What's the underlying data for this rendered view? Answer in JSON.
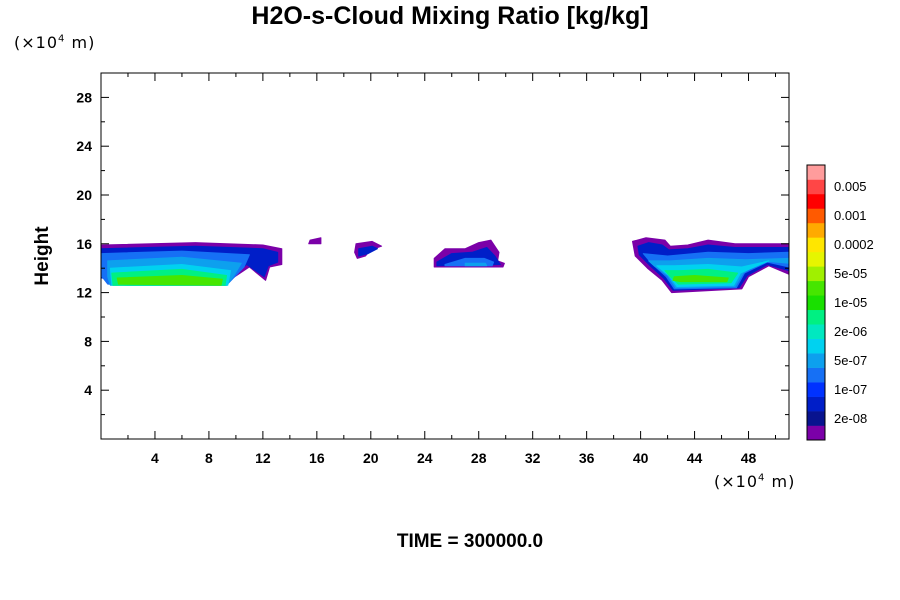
{
  "chart_data": {
    "type": "contour",
    "title": "H2O-s-Cloud Mixing Ratio [kg/kg]",
    "ylabel": "Height",
    "x_unit": {
      "prefix": "(×10",
      "exp": "4",
      "suffix": " m)"
    },
    "y_unit": {
      "prefix": "(×10",
      "exp": "4",
      "suffix": " m)"
    },
    "xlim": [
      0,
      51
    ],
    "ylim": [
      0,
      30
    ],
    "x_ticks": [
      "4",
      "8",
      "12",
      "16",
      "20",
      "24",
      "28",
      "32",
      "36",
      "40",
      "44",
      "48"
    ],
    "y_ticks": [
      "4",
      "8",
      "12",
      "16",
      "20",
      "24",
      "28"
    ],
    "footer": "TIME = 300000.0",
    "colorbar": {
      "colors": [
        "#7b00a8",
        "#08138f",
        "#001ec8",
        "#0032ff",
        "#1670f5",
        "#0da0ee",
        "#00d2f0",
        "#00e8c0",
        "#00f082",
        "#19e000",
        "#46e600",
        "#a0f000",
        "#e6f500",
        "#ffe600",
        "#ffaa00",
        "#ff5a00",
        "#ff0000",
        "#ff4646",
        "#ff9c9c"
      ],
      "labels": [
        {
          "text": "2e-08",
          "index": 1
        },
        {
          "text": "1e-07",
          "index": 3
        },
        {
          "text": "5e-07",
          "index": 5
        },
        {
          "text": "2e-06",
          "index": 7
        },
        {
          "text": "1e-05",
          "index": 9
        },
        {
          "text": "5e-05",
          "index": 11
        },
        {
          "text": "0.0002",
          "index": 13
        },
        {
          "text": "0.001",
          "index": 15
        },
        {
          "text": "0.005",
          "index": 17
        }
      ]
    },
    "regions": [
      {
        "name": "cloud-left",
        "bands": [
          [
            [
              0,
              15.9
            ],
            [
              7,
              16.1
            ],
            [
              12,
              15.9
            ],
            [
              13.4,
              15.6
            ],
            [
              13.4,
              14.3
            ],
            [
              12.5,
              14.1
            ],
            [
              12.2,
              13.0
            ],
            [
              11,
              14.1
            ],
            [
              9.5,
              13.0
            ],
            [
              0,
              13.2
            ]
          ],
          [
            [
              0,
              15.6
            ],
            [
              7,
              15.8
            ],
            [
              12,
              15.6
            ],
            [
              13.1,
              15.3
            ],
            [
              13.1,
              14.5
            ],
            [
              12.4,
              14.2
            ],
            [
              12.1,
              13.3
            ],
            [
              10.8,
              14.3
            ],
            [
              9.3,
              13.0
            ],
            [
              0,
              13.2
            ]
          ],
          [
            [
              0,
              15.2
            ],
            [
              6,
              15.4
            ],
            [
              11,
              15.1
            ],
            [
              10.6,
              14.1
            ],
            [
              9.3,
              12.6
            ],
            [
              7,
              12.6
            ],
            [
              2,
              12.6
            ],
            [
              0.5,
              12.7
            ],
            [
              0,
              13.4
            ]
          ],
          [
            [
              0.5,
              14.6
            ],
            [
              6,
              14.9
            ],
            [
              10.4,
              14.4
            ],
            [
              9.8,
              13.3
            ],
            [
              9.3,
              12.6
            ],
            [
              0.7,
              12.6
            ],
            [
              0.5,
              13.3
            ]
          ],
          [
            [
              0.7,
              14.0
            ],
            [
              6,
              14.3
            ],
            [
              9.6,
              13.8
            ],
            [
              9.4,
              12.6
            ],
            [
              0.8,
              12.6
            ]
          ],
          [
            [
              0.8,
              13.6
            ],
            [
              6,
              13.9
            ],
            [
              9.3,
              13.4
            ],
            [
              9.2,
              12.6
            ],
            [
              0.9,
              12.6
            ]
          ],
          [
            [
              1.2,
              13.2
            ],
            [
              6,
              13.4
            ],
            [
              9.0,
              13.1
            ],
            [
              8.9,
              12.6
            ],
            [
              1.3,
              12.7
            ]
          ]
        ]
      },
      {
        "name": "cloud-speck",
        "bands": [
          [
            [
              15.5,
              16.3
            ],
            [
              16.3,
              16.5
            ],
            [
              16.3,
              16.0
            ],
            [
              15.4,
              16.0
            ]
          ]
        ]
      },
      {
        "name": "cloud-small",
        "bands": [
          [
            [
              18.9,
              16.0
            ],
            [
              20.1,
              16.2
            ],
            [
              20.8,
              15.8
            ],
            [
              20.0,
              15.5
            ],
            [
              19.6,
              15.0
            ],
            [
              19.0,
              14.8
            ],
            [
              18.8,
              15.3
            ]
          ],
          [
            [
              19.1,
              15.6
            ],
            [
              20.1,
              15.8
            ],
            [
              20.5,
              15.6
            ],
            [
              19.8,
              15.2
            ],
            [
              19.1,
              15.0
            ]
          ]
        ]
      },
      {
        "name": "cloud-center",
        "bands": [
          [
            [
              24.7,
              14.8
            ],
            [
              25.5,
              15.6
            ],
            [
              27.0,
              15.6
            ],
            [
              28.0,
              16.1
            ],
            [
              28.9,
              16.3
            ],
            [
              29.5,
              15.3
            ],
            [
              29.4,
              14.6
            ],
            [
              29.9,
              14.4
            ],
            [
              29.8,
              14.1
            ],
            [
              24.7,
              14.1
            ]
          ],
          [
            [
              24.9,
              14.5
            ],
            [
              26.0,
              15.2
            ],
            [
              27.5,
              15.3
            ],
            [
              28.6,
              15.7
            ],
            [
              29.2,
              15.0
            ],
            [
              29.6,
              14.3
            ],
            [
              24.9,
              14.2
            ]
          ],
          [
            [
              25.5,
              14.3
            ],
            [
              27.0,
              14.8
            ],
            [
              28.4,
              14.8
            ],
            [
              29.1,
              14.5
            ],
            [
              29.0,
              14.2
            ],
            [
              25.5,
              14.2
            ]
          ],
          [
            [
              27.0,
              14.4
            ],
            [
              28.5,
              14.4
            ],
            [
              28.6,
              14.2
            ],
            [
              27.0,
              14.2
            ]
          ]
        ]
      },
      {
        "name": "cloud-right",
        "bands": [
          [
            [
              39.4,
              16.2
            ],
            [
              40.4,
              16.5
            ],
            [
              41.8,
              16.3
            ],
            [
              42.2,
              15.8
            ],
            [
              43.5,
              15.9
            ],
            [
              45.0,
              16.3
            ],
            [
              47.0,
              16.0
            ],
            [
              51,
              16.0
            ],
            [
              51,
              13.5
            ],
            [
              49.5,
              14.2
            ],
            [
              48.0,
              13.3
            ],
            [
              47.5,
              12.3
            ],
            [
              42.3,
              12.0
            ],
            [
              41.6,
              13.0
            ],
            [
              40.5,
              14.0
            ],
            [
              39.6,
              15.0
            ]
          ],
          [
            [
              39.8,
              15.8
            ],
            [
              40.6,
              16.1
            ],
            [
              41.6,
              15.9
            ],
            [
              42.1,
              15.5
            ],
            [
              43.5,
              15.6
            ],
            [
              45.0,
              15.9
            ],
            [
              47.0,
              15.7
            ],
            [
              51,
              15.7
            ],
            [
              51,
              13.8
            ],
            [
              49.4,
              14.3
            ],
            [
              47.9,
              13.4
            ],
            [
              47.3,
              12.4
            ],
            [
              42.4,
              12.2
            ],
            [
              41.7,
              13.2
            ],
            [
              40.7,
              14.2
            ],
            [
              39.9,
              15.1
            ]
          ],
          [
            [
              40.2,
              15.2
            ],
            [
              42.0,
              15.0
            ],
            [
              45.0,
              15.3
            ],
            [
              48.0,
              15.2
            ],
            [
              51,
              15.3
            ],
            [
              51,
              14.1
            ],
            [
              49.4,
              14.5
            ],
            [
              47.7,
              13.6
            ],
            [
              47.1,
              12.4
            ],
            [
              42.5,
              12.3
            ],
            [
              41.9,
              13.3
            ],
            [
              40.8,
              14.4
            ]
          ],
          [
            [
              40.6,
              14.6
            ],
            [
              42.2,
              14.6
            ],
            [
              45.0,
              14.8
            ],
            [
              47.8,
              14.7
            ],
            [
              51,
              14.8
            ],
            [
              51,
              14.4
            ],
            [
              49.0,
              14.6
            ],
            [
              47.6,
              13.6
            ],
            [
              47.0,
              12.5
            ],
            [
              42.6,
              12.4
            ],
            [
              42.0,
              13.4
            ],
            [
              41.0,
              14.2
            ]
          ],
          [
            [
              41.2,
              14.2
            ],
            [
              42.5,
              14.2
            ],
            [
              45.0,
              14.3
            ],
            [
              47.5,
              14.1
            ],
            [
              49.5,
              14.6
            ],
            [
              47.4,
              13.6
            ],
            [
              46.9,
              12.6
            ],
            [
              42.7,
              12.5
            ],
            [
              42.1,
              13.4
            ]
          ],
          [
            [
              41.8,
              13.8
            ],
            [
              43.0,
              13.8
            ],
            [
              45.0,
              13.9
            ],
            [
              47.2,
              13.6
            ],
            [
              46.7,
              12.8
            ],
            [
              42.8,
              12.7
            ],
            [
              42.2,
              13.3
            ]
          ],
          [
            [
              42.5,
              13.3
            ],
            [
              44.0,
              13.4
            ],
            [
              46.5,
              13.2
            ],
            [
              46.4,
              12.9
            ],
            [
              43.0,
              12.9
            ],
            [
              42.4,
              13.0
            ]
          ]
        ]
      }
    ],
    "band_levels": [
      0,
      2,
      4,
      5,
      6,
      8,
      10
    ]
  }
}
